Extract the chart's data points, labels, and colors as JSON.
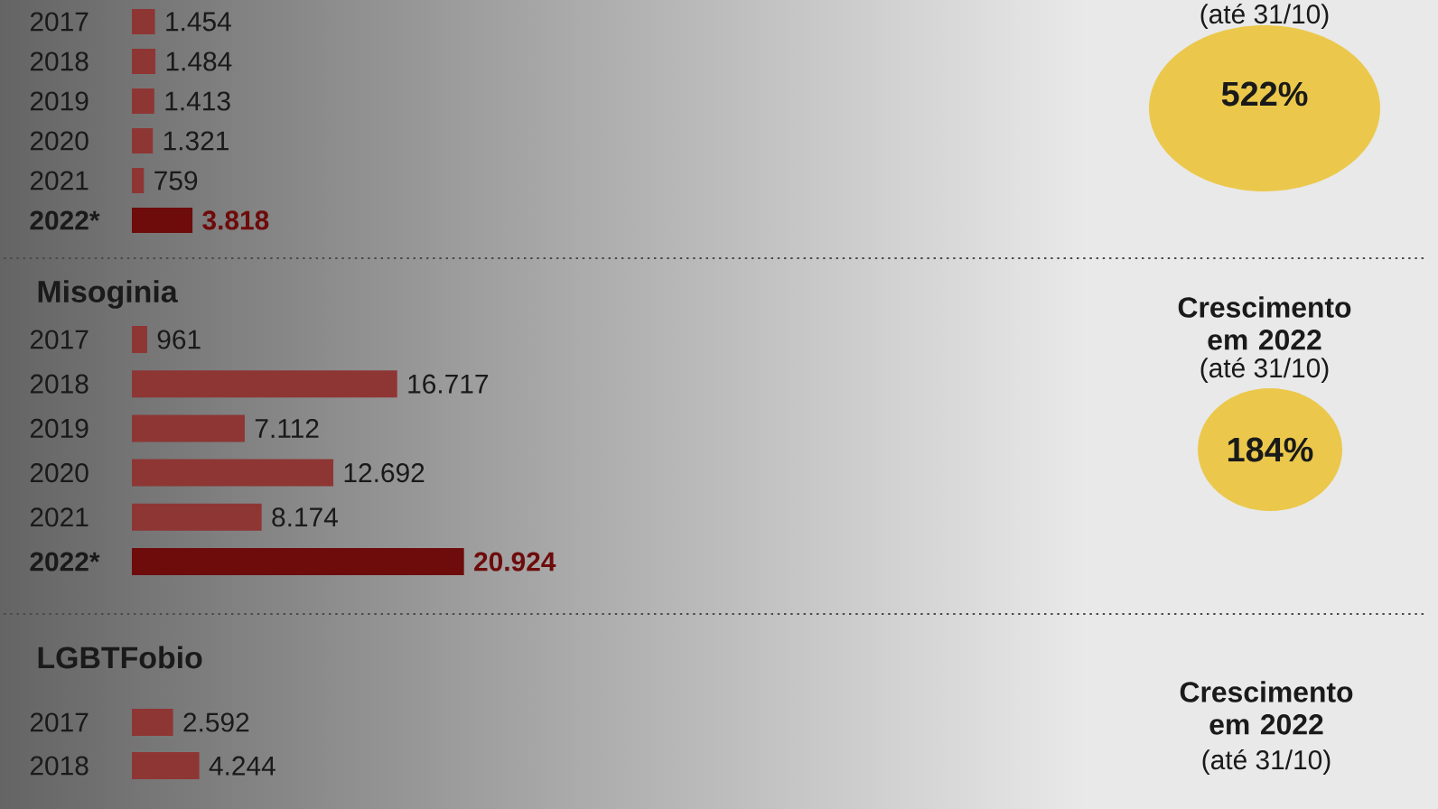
{
  "chart_data": [
    {
      "type": "bar",
      "orientation": "horizontal",
      "categories": [
        "2017",
        "2018",
        "2019",
        "2020",
        "2021",
        "2022*"
      ],
      "values": [
        1454,
        1484,
        1413,
        1321,
        759,
        3818
      ],
      "value_labels": [
        "1.454",
        "1.484",
        "1.413",
        "1.321",
        "759",
        "3.818"
      ],
      "colors": [
        "#8e3634",
        "#8e3634",
        "#8e3634",
        "#8e3634",
        "#8e3634",
        "#6e0b0b"
      ],
      "annotations": [
        "(até 31/10)",
        "522%"
      ]
    },
    {
      "type": "bar",
      "orientation": "horizontal",
      "title": "Misoginia",
      "categories": [
        "2017",
        "2018",
        "2019",
        "2020",
        "2021",
        "2022*"
      ],
      "values": [
        961,
        16717,
        7112,
        12692,
        8174,
        20924
      ],
      "value_labels": [
        "961",
        "16.717",
        "7.112",
        "12.692",
        "8.174",
        "20.924"
      ],
      "colors": [
        "#8e3634",
        "#8e3634",
        "#8e3634",
        "#8e3634",
        "#8e3634",
        "#6e0b0b"
      ],
      "annotations": [
        "Crescimento em 2022",
        "(até 31/10)",
        "184%"
      ]
    },
    {
      "type": "bar",
      "orientation": "horizontal",
      "title": "LGBTFobio",
      "categories": [
        "2017",
        "2018"
      ],
      "values": [
        2592,
        4244
      ],
      "value_labels": [
        "2.592",
        "4.244"
      ],
      "colors": [
        "#8e3634",
        "#8e3634"
      ],
      "annotations": [
        "Crescimento em 2022",
        "(até 31/10)"
      ]
    }
  ]
}
